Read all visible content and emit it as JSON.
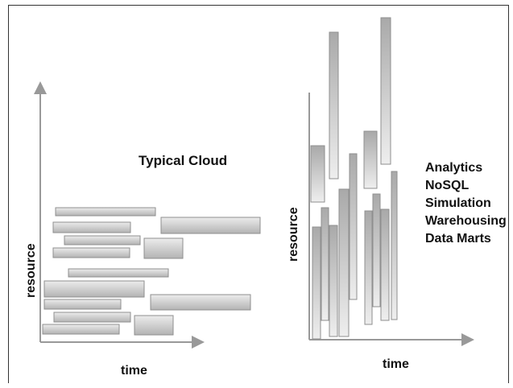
{
  "left_panel": {
    "title": "Typical Cloud",
    "xlabel": "time",
    "ylabel": "resource"
  },
  "right_panel": {
    "xlabel": "time",
    "ylabel": "resource",
    "workloads": [
      "Analytics",
      "NoSQL",
      "Simulation",
      "Warehousing",
      "Data Marts"
    ]
  },
  "colors": {
    "bar_fill_light": "#e6e6e6",
    "bar_fill_dark": "#b5b5b5",
    "axis": "#999999",
    "frame": "#333333"
  }
}
